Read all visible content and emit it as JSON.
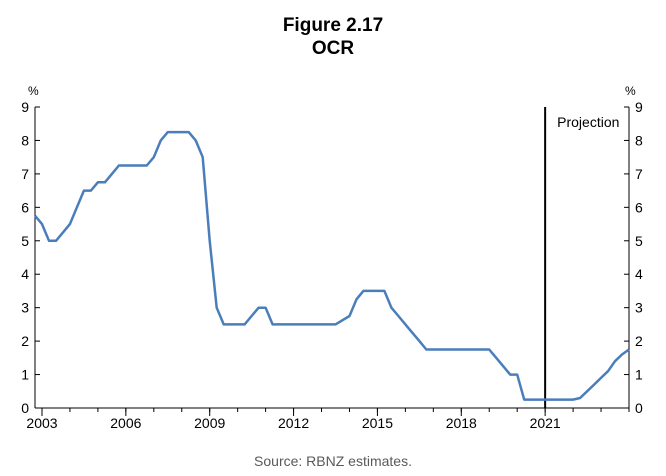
{
  "figure": {
    "title": "Figure 2.17",
    "subtitle": "OCR",
    "source": "Source: RBNZ estimates."
  },
  "chart_data": {
    "type": "line",
    "title": "OCR",
    "ylabel_left": "%",
    "ylabel_right": "%",
    "ylim": [
      0,
      9
    ],
    "y_ticks": [
      0,
      1,
      2,
      3,
      4,
      5,
      6,
      7,
      8,
      9
    ],
    "xlim": [
      2002.75,
      2024.0
    ],
    "x_ticks": [
      2003,
      2006,
      2009,
      2012,
      2015,
      2018,
      2021
    ],
    "x_tick_labels": [
      "2003",
      "2006",
      "2009",
      "2012",
      "2015",
      "2018",
      "2021"
    ],
    "grid": false,
    "line_color": "#4a7ebb",
    "annotation": {
      "label": "Projection",
      "x": 2021.0
    },
    "series": [
      {
        "values": [
          [
            2002.75,
            5.75
          ],
          [
            2003.0,
            5.5
          ],
          [
            2003.25,
            5.0
          ],
          [
            2003.5,
            5.0
          ],
          [
            2003.75,
            5.25
          ],
          [
            2004.0,
            5.5
          ],
          [
            2004.25,
            6.0
          ],
          [
            2004.5,
            6.5
          ],
          [
            2004.75,
            6.5
          ],
          [
            2005.0,
            6.75
          ],
          [
            2005.25,
            6.75
          ],
          [
            2005.5,
            7.0
          ],
          [
            2005.75,
            7.25
          ],
          [
            2006.0,
            7.25
          ],
          [
            2006.25,
            7.25
          ],
          [
            2006.5,
            7.25
          ],
          [
            2006.75,
            7.25
          ],
          [
            2007.0,
            7.5
          ],
          [
            2007.25,
            8.0
          ],
          [
            2007.5,
            8.25
          ],
          [
            2007.75,
            8.25
          ],
          [
            2008.0,
            8.25
          ],
          [
            2008.25,
            8.25
          ],
          [
            2008.5,
            8.0
          ],
          [
            2008.75,
            7.5
          ],
          [
            2009.0,
            5.0
          ],
          [
            2009.25,
            3.0
          ],
          [
            2009.5,
            2.5
          ],
          [
            2009.75,
            2.5
          ],
          [
            2010.0,
            2.5
          ],
          [
            2010.25,
            2.5
          ],
          [
            2010.5,
            2.75
          ],
          [
            2010.75,
            3.0
          ],
          [
            2011.0,
            3.0
          ],
          [
            2011.25,
            2.5
          ],
          [
            2011.5,
            2.5
          ],
          [
            2012.0,
            2.5
          ],
          [
            2013.0,
            2.5
          ],
          [
            2013.5,
            2.5
          ],
          [
            2014.0,
            2.75
          ],
          [
            2014.25,
            3.25
          ],
          [
            2014.5,
            3.5
          ],
          [
            2014.75,
            3.5
          ],
          [
            2015.0,
            3.5
          ],
          [
            2015.25,
            3.5
          ],
          [
            2015.5,
            3.0
          ],
          [
            2015.75,
            2.75
          ],
          [
            2016.0,
            2.5
          ],
          [
            2016.25,
            2.25
          ],
          [
            2016.5,
            2.0
          ],
          [
            2016.75,
            1.75
          ],
          [
            2017.0,
            1.75
          ],
          [
            2018.0,
            1.75
          ],
          [
            2019.0,
            1.75
          ],
          [
            2019.25,
            1.5
          ],
          [
            2019.5,
            1.25
          ],
          [
            2019.75,
            1.0
          ],
          [
            2020.0,
            1.0
          ],
          [
            2020.25,
            0.25
          ],
          [
            2020.5,
            0.25
          ],
          [
            2021.0,
            0.25
          ],
          [
            2021.5,
            0.25
          ],
          [
            2022.0,
            0.25
          ],
          [
            2022.25,
            0.3
          ],
          [
            2022.5,
            0.5
          ],
          [
            2022.75,
            0.7
          ],
          [
            2023.0,
            0.9
          ],
          [
            2023.25,
            1.1
          ],
          [
            2023.5,
            1.4
          ],
          [
            2023.75,
            1.6
          ],
          [
            2024.0,
            1.75
          ]
        ]
      }
    ]
  }
}
